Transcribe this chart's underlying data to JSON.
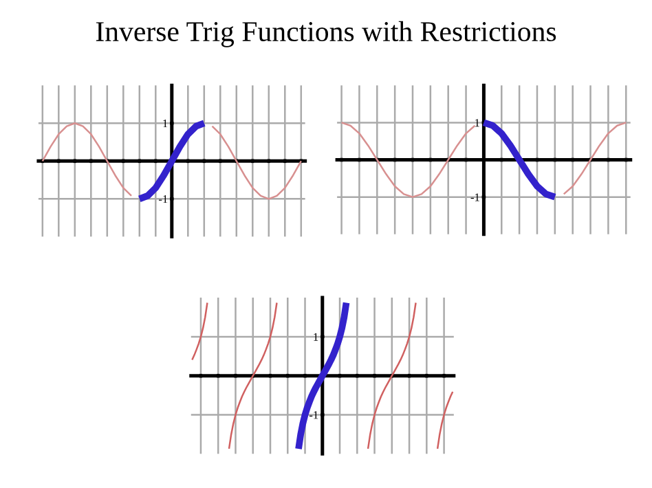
{
  "chart_data": [
    {
      "type": "line",
      "title": "Inverse Trig Functions with Restrictions",
      "ylim": [
        -2,
        2
      ],
      "yticks": [
        -1,
        1
      ],
      "grid": true,
      "line_style": "solid",
      "marker": "none",
      "categories": [
        null,
        null,
        null,
        null,
        null,
        null,
        null,
        null,
        null,
        null,
        null,
        null,
        null,
        null,
        null,
        null,
        null,
        null,
        null,
        null,
        null,
        null,
        null,
        null,
        null,
        null,
        null,
        null,
        null,
        null,
        null,
        null,
        null
      ],
      "series": [
        {
          "color": "#d89090",
          "values": [
            0,
            0.38,
            0.71,
            0.92,
            1,
            0.92,
            0.71,
            0.38,
            0,
            -0.38,
            -0.71,
            -0.92,
            null,
            null,
            null,
            null,
            null,
            null,
            null,
            null,
            null,
            0.92,
            0.71,
            0.38,
            0,
            -0.38,
            -0.71,
            -0.92,
            -1,
            -0.92,
            -0.71,
            -0.38,
            0
          ]
        },
        {
          "color": "#3322cc",
          "values": [
            null,
            null,
            null,
            null,
            null,
            null,
            null,
            null,
            null,
            null,
            null,
            null,
            -1,
            -0.92,
            -0.71,
            -0.38,
            0,
            0.38,
            0.71,
            0.92,
            1,
            null,
            null,
            null,
            null,
            null,
            null,
            null,
            null,
            null,
            null,
            null,
            null
          ]
        }
      ]
    },
    {
      "type": "line",
      "ylim": [
        -2,
        2
      ],
      "yticks": [
        -1,
        1
      ],
      "grid": true,
      "line_style": "solid",
      "marker": "none",
      "categories": [
        null,
        null,
        null,
        null,
        null,
        null,
        null,
        null,
        null,
        null,
        null,
        null,
        null,
        null,
        null,
        null,
        null,
        null,
        null,
        null,
        null,
        null,
        null,
        null,
        null,
        null,
        null,
        null,
        null,
        null,
        null,
        null,
        null
      ],
      "series": [
        {
          "color": "#d89090",
          "values": [
            1,
            0.92,
            0.71,
            0.38,
            0,
            -0.38,
            -0.71,
            -0.92,
            -1,
            -0.92,
            -0.71,
            -0.38,
            0,
            0.38,
            0.71,
            0.92,
            null,
            null,
            null,
            null,
            null,
            null,
            null,
            null,
            null,
            -0.92,
            -0.71,
            -0.38,
            0,
            0.38,
            0.71,
            0.92,
            1
          ]
        },
        {
          "color": "#3322cc",
          "values": [
            null,
            null,
            null,
            null,
            null,
            null,
            null,
            null,
            null,
            null,
            null,
            null,
            null,
            null,
            null,
            null,
            1,
            0.92,
            0.71,
            0.38,
            0,
            -0.38,
            -0.71,
            -0.92,
            -1,
            null,
            null,
            null,
            null,
            null,
            null,
            null,
            null
          ]
        }
      ]
    },
    {
      "type": "line",
      "ylim": [
        -2,
        2
      ],
      "yticks": [
        -1,
        1
      ],
      "grid": true,
      "line_style": "solid",
      "marker": "none",
      "categories": [
        null,
        null,
        null,
        null,
        null,
        null,
        null,
        null,
        null,
        null,
        null,
        null,
        null,
        null,
        null,
        null,
        null,
        null,
        null,
        null,
        null,
        null,
        null,
        null,
        null,
        null,
        null,
        null,
        null,
        null,
        null,
        null,
        null,
        null,
        null,
        null,
        null,
        null,
        null,
        null,
        null,
        null,
        null,
        null,
        null,
        null,
        null,
        null,
        null,
        null,
        null,
        null,
        null,
        null,
        null,
        null,
        null,
        null,
        null,
        null,
        null,
        null,
        null,
        null,
        null,
        null,
        null,
        null,
        null,
        null,
        null,
        null,
        null,
        null,
        null,
        null,
        null,
        null,
        null,
        null,
        null,
        null,
        null,
        null,
        null,
        null,
        null,
        null,
        null,
        null,
        null,
        null,
        null,
        null,
        null,
        null,
        null,
        null,
        null,
        null,
        null,
        null,
        null,
        null,
        null,
        null,
        null,
        null,
        null,
        null,
        null,
        null,
        null,
        null,
        null,
        null,
        null,
        null,
        null,
        null,
        null
      ],
      "series": [
        {
          "color": "#d06060",
          "values": [
            0.41,
            0.53,
            0.67,
            0.82,
            1,
            1.22,
            1.5,
            1.87,
            null,
            null,
            null,
            null,
            null,
            null,
            null,
            null,
            null,
            -1.87,
            -1.5,
            -1.22,
            -1,
            -0.82,
            -0.67,
            -0.53,
            -0.41,
            -0.3,
            -0.2,
            -0.1,
            0,
            0.1,
            0.2,
            0.3,
            0.41,
            0.53,
            0.67,
            0.82,
            1,
            1.22,
            1.5,
            1.87,
            null,
            null,
            null,
            null,
            null,
            null,
            null,
            null,
            null,
            null,
            null,
            null,
            null,
            null,
            null,
            null,
            null,
            null,
            null,
            null,
            null,
            null,
            null,
            null,
            null,
            null,
            null,
            null,
            null,
            null,
            null,
            null,
            null,
            null,
            null,
            null,
            null,
            null,
            null,
            null,
            null,
            -1.87,
            -1.5,
            -1.22,
            -1,
            -0.82,
            -0.67,
            -0.53,
            -0.41,
            -0.3,
            -0.2,
            -0.1,
            0,
            0.1,
            0.2,
            0.3,
            0.41,
            0.53,
            0.67,
            0.82,
            1,
            1.22,
            1.5,
            1.87,
            null,
            null,
            null,
            null,
            null,
            null,
            null,
            null,
            null,
            -1.87,
            -1.5,
            -1.22,
            -1,
            -0.82,
            -0.67,
            -0.53,
            -0.41
          ]
        },
        {
          "color": "#3322cc",
          "values": [
            null,
            null,
            null,
            null,
            null,
            null,
            null,
            null,
            null,
            null,
            null,
            null,
            null,
            null,
            null,
            null,
            null,
            null,
            null,
            null,
            null,
            null,
            null,
            null,
            null,
            null,
            null,
            null,
            null,
            null,
            null,
            null,
            null,
            null,
            null,
            null,
            null,
            null,
            null,
            null,
            null,
            null,
            null,
            null,
            null,
            null,
            null,
            null,
            null,
            -1.87,
            -1.5,
            -1.22,
            -1,
            -0.82,
            -0.67,
            -0.53,
            -0.41,
            -0.3,
            -0.2,
            -0.1,
            0,
            0.1,
            0.2,
            0.3,
            0.41,
            0.53,
            0.67,
            0.82,
            1,
            1.22,
            1.5,
            1.87,
            null,
            null,
            null,
            null,
            null,
            null,
            null,
            null,
            null,
            null,
            null,
            null,
            null,
            null,
            null,
            null,
            null,
            null,
            null,
            null,
            null,
            null,
            null,
            null,
            null,
            null,
            null,
            null,
            null,
            null,
            null,
            null,
            null,
            null,
            null,
            null,
            null,
            null,
            null,
            null,
            null,
            null,
            null,
            null,
            null,
            null,
            null,
            null,
            null
          ]
        }
      ]
    }
  ]
}
